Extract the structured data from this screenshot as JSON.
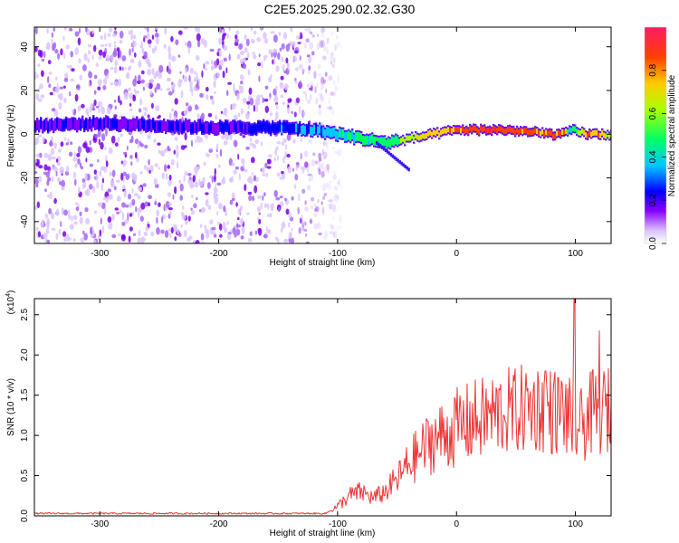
{
  "page_title": "C2E5.2025.290.02.32.G30",
  "chart_data": [
    {
      "type": "heatmap",
      "xlabel": "Height of straight line (km)",
      "ylabel": "Frequency (Hz)",
      "xlim": [
        -355,
        130
      ],
      "ylim": [
        -50,
        49
      ],
      "xticks": [
        -300,
        -200,
        -100,
        0,
        100
      ],
      "yticks": [
        -40,
        -20,
        0,
        20,
        40
      ],
      "colorbar": {
        "label": "Normalized spectral amplitude",
        "range": [
          0,
          1
        ],
        "ticks": [
          "0.0",
          "0.2",
          "0.4",
          "0.6",
          "0.8"
        ]
      },
      "ridge": {
        "x": [
          -355,
          -300,
          -250,
          -200,
          -150,
          -120,
          -100,
          -80,
          -60,
          -50,
          -40,
          -20,
          0,
          20,
          40,
          60,
          80,
          90,
          95,
          110,
          130
        ],
        "frequency": [
          4,
          5,
          4,
          3,
          3,
          2,
          0,
          -2,
          -4,
          -3,
          -2,
          0,
          2,
          2,
          2,
          1,
          0,
          0,
          2,
          0,
          0
        ],
        "amplitude": [
          0.25,
          0.2,
          0.25,
          0.25,
          0.3,
          0.35,
          0.45,
          0.5,
          0.55,
          0.6,
          0.7,
          0.8,
          0.85,
          0.95,
          0.95,
          0.9,
          0.9,
          0.85,
          0.4,
          0.9,
          0.7
        ]
      },
      "noise_extent_x": [
        -355,
        -110
      ]
    },
    {
      "type": "line",
      "xlabel": "Height of straight line (km)",
      "ylabel": "SNR (10 * v/v)",
      "y_multiplier": "(x10",
      "y_multiplier_exp": "4",
      "y_multiplier_close": ")",
      "xlim": [
        -355,
        130
      ],
      "ylim": [
        0,
        2.7
      ],
      "xticks": [
        -300,
        -200,
        -100,
        0,
        100
      ],
      "yticks": [
        "0.0",
        "0.5",
        "1.0",
        "1.5",
        "2.0",
        "2.5"
      ],
      "series": [
        {
          "color": "#ee3333",
          "x": [
            -355,
            -300,
            -250,
            -200,
            -150,
            -110,
            -100,
            -90,
            -80,
            -70,
            -60,
            -50,
            -40,
            -30,
            -20,
            -10,
            0,
            10,
            20,
            30,
            40,
            50,
            60,
            70,
            80,
            90,
            95,
            100,
            105,
            110,
            120,
            130
          ],
          "y": [
            0.03,
            0.03,
            0.03,
            0.03,
            0.03,
            0.03,
            0.12,
            0.25,
            0.3,
            0.22,
            0.3,
            0.45,
            0.65,
            0.8,
            0.95,
            1.0,
            1.1,
            1.15,
            1.2,
            1.25,
            1.3,
            1.3,
            1.35,
            1.35,
            1.3,
            1.3,
            1.2,
            1.1,
            1.1,
            1.25,
            1.3,
            1.3
          ],
          "peaks": [
            {
              "x": 99,
              "y": 2.7
            },
            {
              "x": 120,
              "y": 2.3
            },
            {
              "x": 75,
              "y": 1.8
            }
          ]
        }
      ]
    }
  ]
}
